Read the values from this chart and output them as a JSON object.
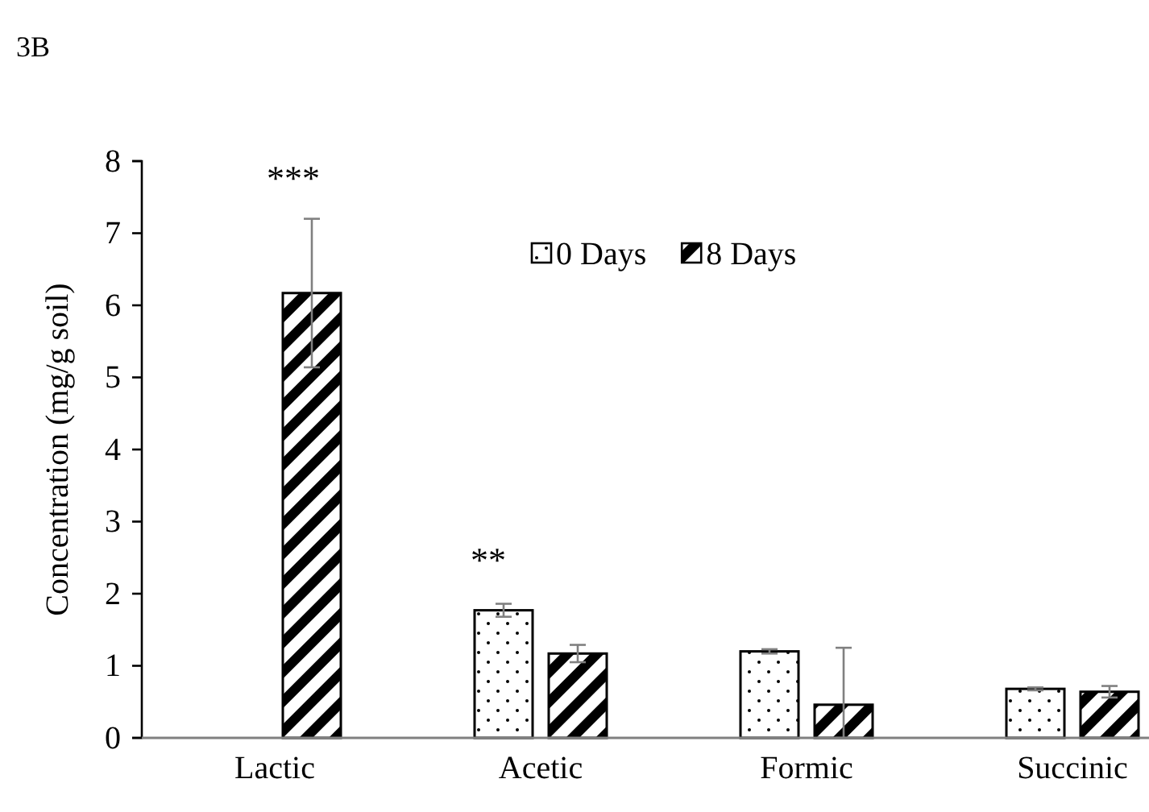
{
  "chart_data": {
    "type": "bar",
    "ylabel": "Concentration (mg/g soil)",
    "categories": [
      "Lactic",
      "Acetic",
      "Formic",
      "Succinic"
    ],
    "series": [
      {
        "name": "0 Days",
        "color": "#000000",
        "values": [
          0,
          1.77,
          1.2,
          0.68
        ],
        "errors": [
          null,
          0.09,
          0.03,
          0.02
        ]
      },
      {
        "name": "8 Days",
        "color": "#000000",
        "values": [
          6.17,
          1.17,
          0.46,
          0.64
        ],
        "errors": [
          1.03,
          0.12,
          [
            0,
            1.25
          ],
          0.08
        ]
      }
    ],
    "ylim": [
      0,
      8
    ],
    "yticks": [
      0,
      1,
      2,
      3,
      4,
      5,
      6,
      7,
      8
    ],
    "grid": false,
    "legend": "top right",
    "annotations": [
      "3B",
      "***",
      "**"
    ]
  }
}
